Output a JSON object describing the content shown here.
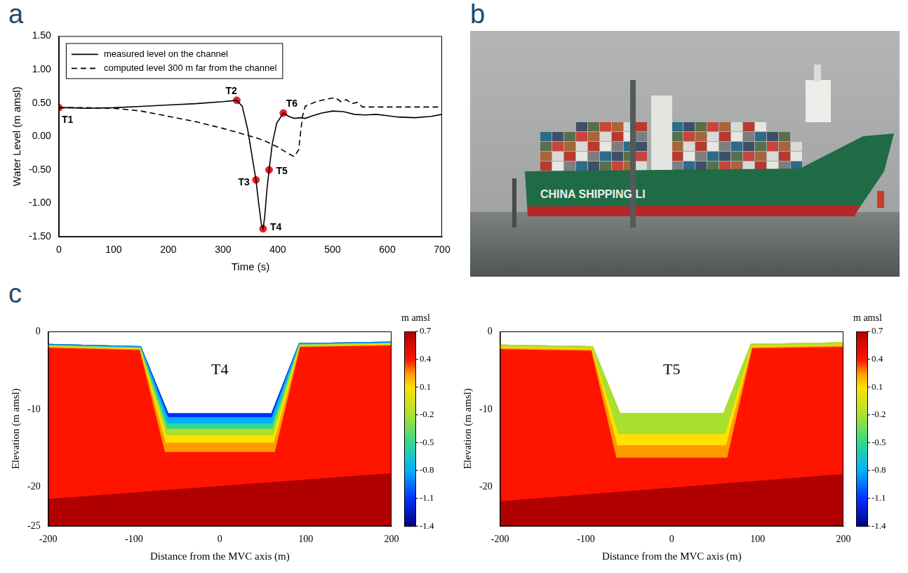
{
  "panel_labels": [
    "a",
    "b",
    "c"
  ],
  "chart_data": [
    {
      "type": "line",
      "xlabel": "Time (s)",
      "ylabel": "Water Level (m amsl)",
      "xlim": [
        0,
        700
      ],
      "xticks": [
        0,
        100,
        200,
        300,
        400,
        500,
        600,
        700
      ],
      "ylim": [
        -1.5,
        1.5
      ],
      "yticks": [
        {
          "value": -1.5,
          "label": "-1.50"
        },
        {
          "value": -1.0,
          "label": "-1.00"
        },
        {
          "value": -0.5,
          "label": "-0.50"
        },
        {
          "value": 0,
          "label": "0.00"
        },
        {
          "value": 0.5,
          "label": "0.50"
        },
        {
          "value": 1.0,
          "label": "1.00"
        },
        {
          "value": 1.5,
          "label": "1.50"
        }
      ],
      "grid": false,
      "legend": "upper left",
      "series": [
        {
          "name": "measured level on the channel",
          "color": "#000000",
          "line_style": "solid",
          "x": [
            0,
            20,
            50,
            100,
            150,
            200,
            250,
            300,
            325,
            335,
            345,
            355,
            360,
            365,
            370,
            373,
            376,
            380,
            384,
            390,
            398,
            410,
            420,
            430,
            440,
            450,
            460,
            480,
            500,
            520,
            540,
            560,
            580,
            600,
            620,
            650,
            680,
            700
          ],
          "values": [
            0.43,
            0.43,
            0.42,
            0.43,
            0.45,
            0.47,
            0.49,
            0.52,
            0.54,
            0.45,
            0.1,
            -0.4,
            -0.65,
            -1.0,
            -1.32,
            -1.38,
            -1.2,
            -0.8,
            -0.5,
            -0.1,
            0.2,
            0.35,
            0.3,
            0.27,
            0.28,
            0.27,
            0.3,
            0.35,
            0.38,
            0.37,
            0.33,
            0.32,
            0.33,
            0.31,
            0.29,
            0.28,
            0.3,
            0.33
          ]
        },
        {
          "name": "computed level 300 m far from the channel",
          "color": "#000000",
          "line_style": "dashed",
          "x": [
            0,
            50,
            100,
            150,
            200,
            250,
            300,
            330,
            360,
            380,
            400,
            420,
            430,
            438,
            445,
            450,
            470,
            490,
            505,
            515,
            525,
            535,
            545,
            555,
            600,
            700
          ],
          "values": [
            0.43,
            0.43,
            0.42,
            0.38,
            0.3,
            0.22,
            0.12,
            0.05,
            -0.02,
            -0.08,
            -0.16,
            -0.26,
            -0.3,
            -0.2,
            0.3,
            0.45,
            0.52,
            0.56,
            0.58,
            0.52,
            0.55,
            0.49,
            0.51,
            0.44,
            0.44,
            0.44
          ]
        }
      ],
      "markers": {
        "color": "#e8202a",
        "marker": "circle",
        "points": [
          {
            "text": "T1",
            "x": 0,
            "y": 0.43
          },
          {
            "text": "T2",
            "x": 325,
            "y": 0.54
          },
          {
            "text": "T3",
            "x": 360,
            "y": -0.65
          },
          {
            "text": "T4",
            "x": 373,
            "y": -1.38
          },
          {
            "text": "T5",
            "x": 384,
            "y": -0.5
          },
          {
            "text": "T6",
            "x": 410,
            "y": 0.35
          }
        ]
      }
    },
    {
      "type": "section",
      "annotations": [
        {
          "text": "T4",
          "x": 0,
          "y": -5
        }
      ],
      "xlabel": "Distance from the MVC axis (m)",
      "ylabel": "Elevation (m amsl)",
      "xlim": [
        -200,
        200
      ],
      "xticks": [
        -200,
        -100,
        0,
        100,
        200
      ],
      "ylim": [
        -25,
        0
      ],
      "yticks": [
        -25,
        -20,
        -10,
        0
      ],
      "grid": false,
      "bed": {
        "x": [
          -200,
          -92,
          -60,
          60,
          92,
          200
        ],
        "y": [
          -1.6,
          -1.9,
          -10.5,
          -10.5,
          -1.5,
          -1.3
        ]
      },
      "soil_value": 0.4,
      "deep_layer": {
        "value": 0.7,
        "x": [
          -200,
          200
        ],
        "y": [
          -21.5,
          -18.2
        ]
      },
      "zones": [
        {
          "value": -1.1,
          "bottom": -11.0
        },
        {
          "value": -0.8,
          "bottom": -11.8
        },
        {
          "value": -0.5,
          "bottom": -12.5
        },
        {
          "value": -0.2,
          "bottom": -13.3
        },
        {
          "value": 0.1,
          "bottom": -14.3
        },
        {
          "value": 0.25,
          "bottom": -15.5
        }
      ],
      "colorbar": {
        "title": "m amsl",
        "range": [
          -1.4,
          0.7
        ],
        "ticks": [
          0.7,
          0.4,
          0.1,
          -0.2,
          -0.5,
          -0.8,
          -1.1,
          -1.4
        ]
      }
    },
    {
      "type": "section",
      "annotations": [
        {
          "text": "T5",
          "x": 0,
          "y": -5
        }
      ],
      "xlabel": "Distance from the MVC axis (m)",
      "ylabel": "Elevation (m amsl)",
      "xlim": [
        -200,
        200
      ],
      "xticks": [
        -200,
        -100,
        0,
        100,
        200
      ],
      "ylim": [
        -25,
        0
      ],
      "yticks": [
        -20,
        -10,
        0
      ],
      "grid": false,
      "bed": {
        "x": [
          -200,
          -92,
          -60,
          60,
          92,
          200
        ],
        "y": [
          -1.7,
          -1.9,
          -10.5,
          -10.5,
          -1.6,
          -1.4
        ]
      },
      "soil_value": 0.4,
      "deep_layer": {
        "value": 0.7,
        "x": [
          -200,
          200
        ],
        "y": [
          -21.8,
          -18.3
        ]
      },
      "zones": [
        {
          "value": -0.2,
          "bottom": -13.2
        },
        {
          "value": 0.1,
          "bottom": -14.6
        },
        {
          "value": 0.25,
          "bottom": -16.2
        }
      ],
      "colorbar": {
        "title": "m amsl",
        "range": [
          -1.4,
          0.7
        ],
        "ticks": [
          0.7,
          0.4,
          0.1,
          -0.2,
          -0.5,
          -0.8,
          -1.1,
          -1.4
        ]
      }
    }
  ],
  "photo": {
    "hull_text": "CHINA SHIPPING LI"
  }
}
